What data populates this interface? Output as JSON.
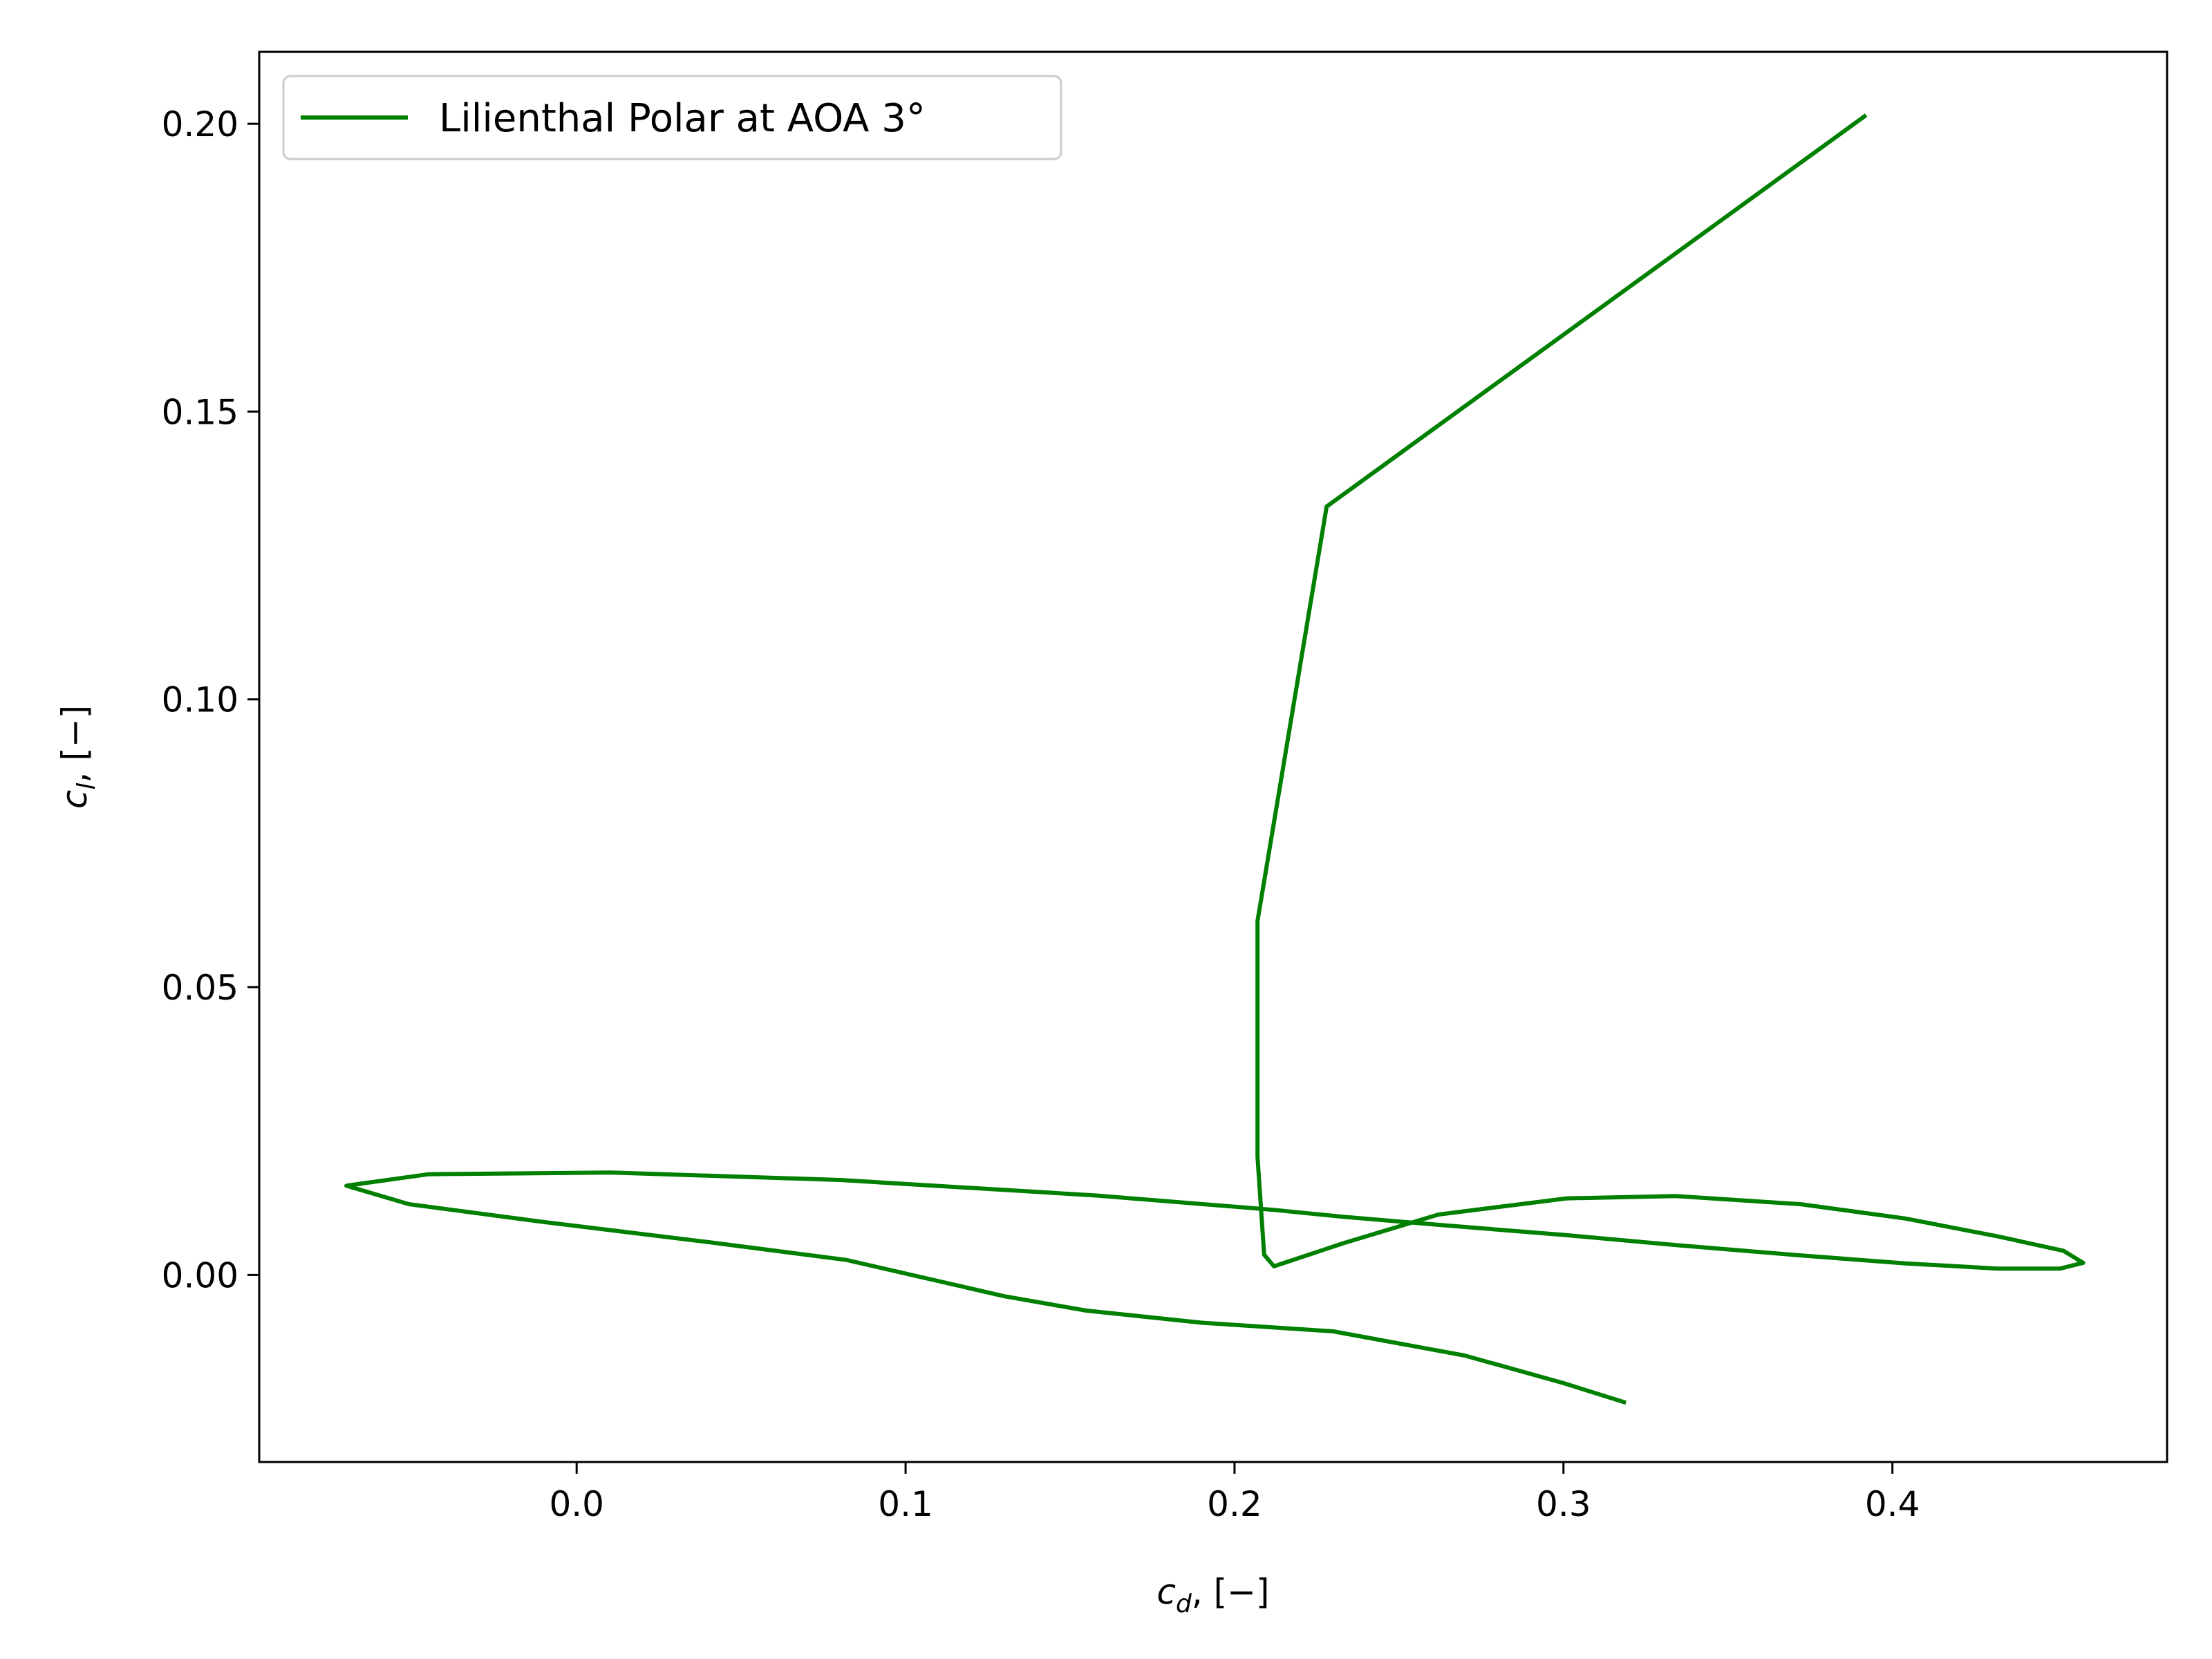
{
  "chart_data": {
    "type": "line",
    "title": "",
    "xlabel": {
      "main": "c",
      "sub": "d",
      "suffix": ", [−]"
    },
    "ylabel": {
      "main": "c",
      "sub": "l",
      "suffix": ", [−]"
    },
    "xlim": [
      -0.0965,
      0.4835
    ],
    "ylim": [
      -0.0325,
      0.2125
    ],
    "xticks": [
      0.0,
      0.1,
      0.2,
      0.3,
      0.4
    ],
    "xtick_labels": [
      "0.0",
      "0.1",
      "0.2",
      "0.3",
      "0.4"
    ],
    "yticks": [
      0.0,
      0.05,
      0.1,
      0.15,
      0.2
    ],
    "ytick_labels": [
      "0.00",
      "0.05",
      "0.10",
      "0.15",
      "0.20"
    ],
    "grid": false,
    "legend_position": "upper-left",
    "series": [
      {
        "name": "Lilienthal Polar at AOA 3°",
        "color": "#008000",
        "x": [
          0.392,
          0.228,
          0.207,
          0.207,
          0.207,
          0.209,
          0.212,
          0.233,
          0.262,
          0.301,
          0.334,
          0.372,
          0.404,
          0.432,
          0.452,
          0.458,
          0.451,
          0.432,
          0.404,
          0.372,
          0.334,
          0.301,
          0.262,
          0.233,
          0.212,
          0.158,
          0.08,
          0.01,
          -0.045,
          -0.07,
          -0.051,
          -0.01,
          0.04,
          0.082,
          0.13,
          0.155,
          0.19,
          0.23,
          0.27,
          0.3,
          0.319
        ],
        "y": [
          0.2015,
          0.1335,
          0.0615,
          0.0415,
          0.0205,
          0.0035,
          0.0015,
          0.0055,
          0.0105,
          0.0133,
          0.0137,
          0.0123,
          0.0098,
          0.0067,
          0.0042,
          0.0021,
          0.0011,
          0.0011,
          0.002,
          0.0034,
          0.0052,
          0.0069,
          0.0087,
          0.0101,
          0.0113,
          0.0138,
          0.0165,
          0.0178,
          0.0175,
          0.0155,
          0.0123,
          0.0092,
          0.0057,
          0.0026,
          -0.0037,
          -0.0062,
          -0.0083,
          -0.0098,
          -0.014,
          -0.0188,
          -0.0222
        ]
      }
    ]
  }
}
